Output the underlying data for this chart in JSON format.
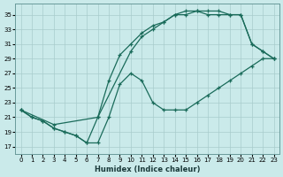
{
  "xlabel": "Humidex (Indice chaleur)",
  "xlim": [
    -0.5,
    23.5
  ],
  "ylim": [
    16,
    36.5
  ],
  "xticks": [
    0,
    1,
    2,
    3,
    4,
    5,
    6,
    7,
    8,
    9,
    10,
    11,
    12,
    13,
    14,
    15,
    16,
    17,
    18,
    19,
    20,
    21,
    22,
    23
  ],
  "yticks": [
    17,
    19,
    21,
    23,
    25,
    27,
    29,
    31,
    33,
    35
  ],
  "bg_color": "#caeaea",
  "grid_color": "#a8cccc",
  "line_color": "#1a6b5a",
  "line1_x": [
    0,
    1,
    2,
    3,
    4,
    5,
    6,
    7,
    8,
    9,
    10,
    11,
    12,
    13,
    14,
    15,
    16,
    17,
    18,
    19,
    20,
    21,
    22,
    23
  ],
  "line1_y": [
    22,
    21,
    20.5,
    19.5,
    19,
    18.5,
    17.5,
    17.5,
    21,
    25.5,
    27,
    26,
    23,
    22,
    22,
    22,
    23,
    24,
    25,
    26,
    27,
    28,
    29,
    29
  ],
  "line2_x": [
    0,
    1,
    2,
    3,
    4,
    5,
    6,
    7,
    8,
    9,
    10,
    11,
    12,
    13,
    14,
    15,
    16,
    17,
    18,
    19,
    20,
    21,
    22,
    23
  ],
  "line2_y": [
    22,
    21,
    20.5,
    19.5,
    19,
    18.5,
    17.5,
    21,
    26,
    29.5,
    31,
    32.5,
    33.5,
    34,
    35,
    35.5,
    35.5,
    35,
    35,
    35,
    35,
    31,
    30,
    29
  ],
  "line3_x": [
    0,
    3,
    7,
    10,
    11,
    12,
    13,
    14,
    15,
    16,
    17,
    18,
    19,
    20,
    21,
    22,
    23
  ],
  "line3_y": [
    22,
    20,
    21,
    30,
    32,
    33,
    34,
    35,
    35,
    35.5,
    35.5,
    35.5,
    35,
    35,
    31,
    30,
    29
  ]
}
